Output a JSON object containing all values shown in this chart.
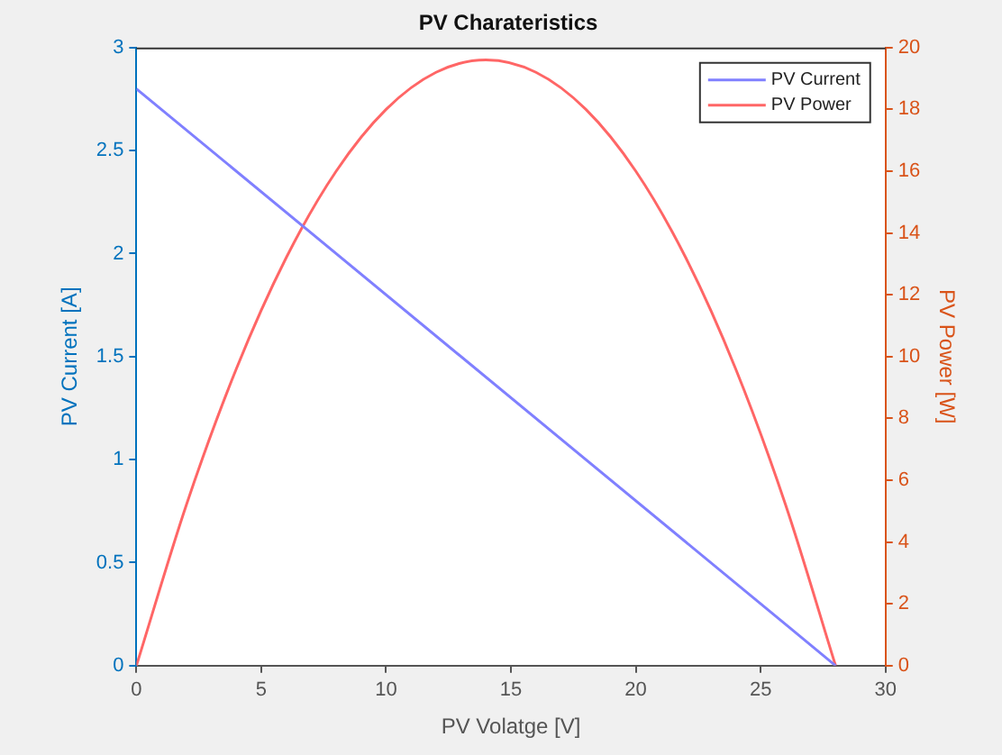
{
  "chart_data": {
    "type": "line",
    "title": "PV Charateristics",
    "xlabel": "PV Volatge [V]",
    "ylabel": "PV Current [A]",
    "y2label": "PV Power [W]",
    "xlim": [
      0,
      30
    ],
    "xticks": [
      0,
      5,
      10,
      15,
      20,
      25,
      30
    ],
    "ylim": [
      0,
      3
    ],
    "yticks": [
      0,
      0.5,
      1,
      1.5,
      2,
      2.5,
      3
    ],
    "y2lim": [
      0,
      20
    ],
    "y2ticks": [
      0,
      2,
      4,
      6,
      8,
      10,
      12,
      14,
      16,
      18,
      20
    ],
    "grid": false,
    "legend": "top right",
    "marker": "none",
    "line_style": "solid",
    "series": [
      {
        "name": "PV Current",
        "color": "#8080ff",
        "x": [
          0,
          28
        ],
        "values": [
          2.8,
          0
        ]
      },
      {
        "name": "PV Power",
        "color": "#ff6666",
        "axis": "y2",
        "x": [
          0,
          2,
          4,
          6,
          8,
          10,
          12,
          14,
          16,
          18,
          20,
          22,
          24,
          26,
          28
        ],
        "values": [
          0,
          5.2,
          9.6,
          13.2,
          16,
          18,
          19.2,
          19.6,
          19.2,
          18,
          16,
          13.2,
          9.6,
          5.2,
          0
        ]
      }
    ]
  }
}
